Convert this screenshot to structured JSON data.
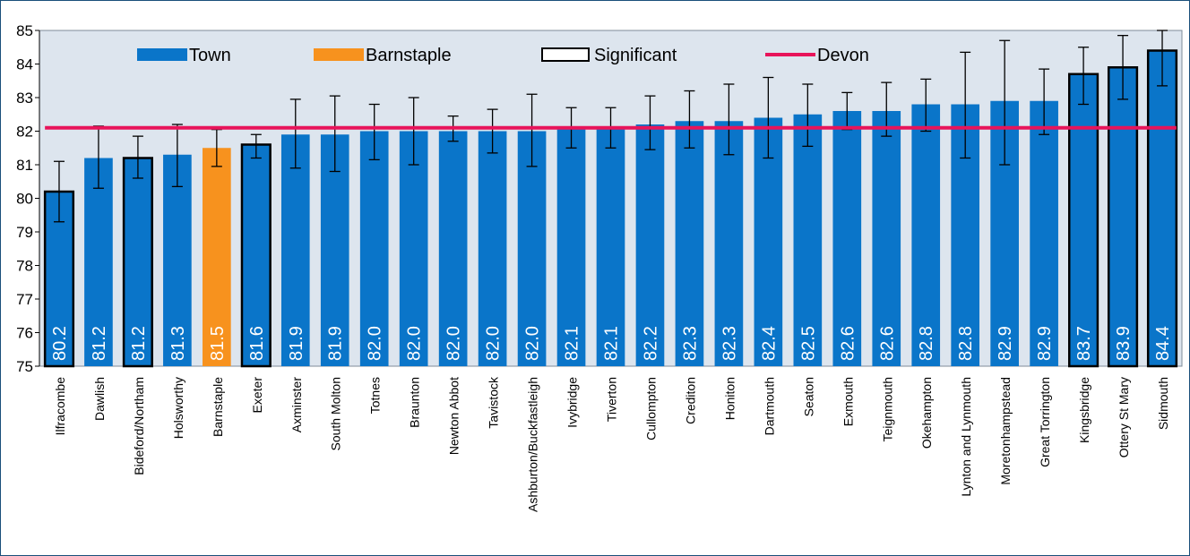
{
  "chart_data": {
    "type": "bar",
    "categories": [
      "Ilfracombe",
      "Dawlish",
      "Bideford/Northam",
      "Holsworthy",
      "Barnstaple",
      "Exeter",
      "Axminster",
      "South Molton",
      "Totnes",
      "Braunton",
      "Newton Abbot",
      "Tavistock",
      "Ashburton/Buckfastleigh",
      "Ivybridge",
      "Tiverton",
      "Cullompton",
      "Crediton",
      "Honiton",
      "Dartmouth",
      "Seaton",
      "Exmouth",
      "Teignmouth",
      "Okehampton",
      "Lynton and Lynmouth",
      "Moretonhampstead",
      "Great Torrington",
      "Kingsbridge",
      "Ottery St Mary",
      "Sidmouth"
    ],
    "values": [
      80.2,
      81.2,
      81.2,
      81.3,
      81.5,
      81.6,
      81.9,
      81.9,
      82.0,
      82.0,
      82.0,
      82.0,
      82.0,
      82.1,
      82.1,
      82.2,
      82.3,
      82.3,
      82.4,
      82.5,
      82.6,
      82.6,
      82.8,
      82.8,
      82.9,
      82.9,
      83.7,
      83.9,
      84.4
    ],
    "value_labels": [
      "80.2",
      "81.2",
      "81.2",
      "81.3",
      "81.5",
      "81.6",
      "81.9",
      "81.9",
      "82.0",
      "82.0",
      "82.0",
      "82.0",
      "82.0",
      "82.1",
      "82.1",
      "82.2",
      "82.3",
      "82.3",
      "82.4",
      "82.5",
      "82.6",
      "82.6",
      "82.8",
      "82.8",
      "82.9",
      "82.9",
      "83.7",
      "83.9",
      "84.4"
    ],
    "ci_lower": [
      79.3,
      80.3,
      80.6,
      80.35,
      80.95,
      81.2,
      80.9,
      80.8,
      81.15,
      81.0,
      81.7,
      81.35,
      80.95,
      81.5,
      81.5,
      81.45,
      81.5,
      81.3,
      81.2,
      81.55,
      82.05,
      81.85,
      82.0,
      81.2,
      81.0,
      81.9,
      82.8,
      82.95,
      83.35
    ],
    "ci_upper": [
      81.1,
      82.15,
      81.85,
      82.2,
      82.05,
      81.9,
      82.95,
      83.05,
      82.8,
      83.0,
      82.45,
      82.65,
      83.1,
      82.7,
      82.7,
      83.05,
      83.2,
      83.4,
      83.6,
      83.4,
      83.15,
      83.45,
      83.55,
      84.35,
      84.7,
      83.85,
      84.5,
      84.85,
      85.0
    ],
    "significant": [
      true,
      false,
      true,
      false,
      false,
      true,
      false,
      false,
      false,
      false,
      false,
      false,
      false,
      false,
      false,
      false,
      false,
      false,
      false,
      false,
      false,
      false,
      false,
      false,
      false,
      false,
      true,
      true,
      true
    ],
    "highlight_category": "Barnstaple",
    "reference_line": {
      "name": "Devon",
      "value": 82.1
    },
    "ylim": [
      75,
      85
    ],
    "yticks": [
      75,
      76,
      77,
      78,
      79,
      80,
      81,
      82,
      83,
      84,
      85
    ],
    "legend": [
      "Town",
      "Barnstaple",
      "Significant",
      "Devon"
    ],
    "legend_position": "top",
    "grid": false,
    "title": "",
    "xlabel": "",
    "ylabel": ""
  },
  "colors": {
    "town": "#0a75c9",
    "barnstaple": "#f7921e",
    "devon_line": "#e8145a",
    "plot_bg": "#dde5ee",
    "significant_border": "#000000",
    "value_label": "#ffffff"
  }
}
